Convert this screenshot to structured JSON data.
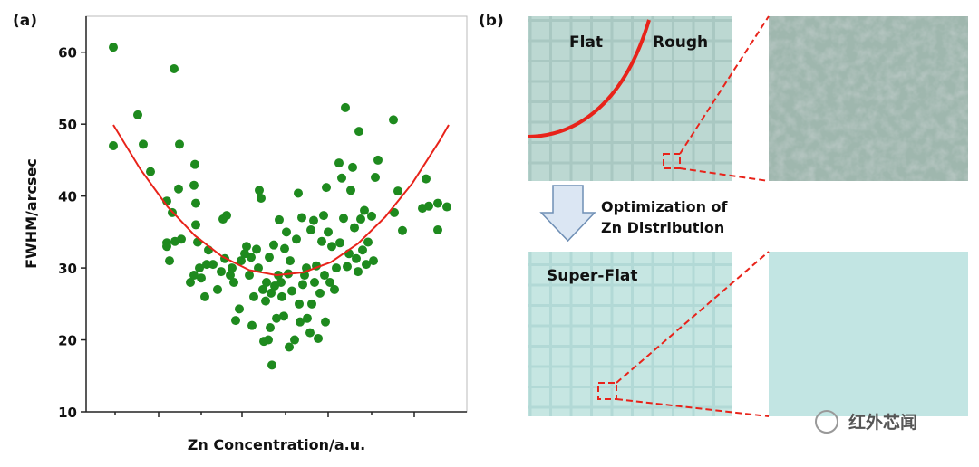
{
  "chart_data": {
    "type": "scatter",
    "x_label": "Zn Concentration/a.u.",
    "y_label": "FWHM/arcsec",
    "xlim": [
      0,
      42
    ],
    "ylim": [
      10,
      65
    ],
    "xticks": [
      3.2,
      8,
      12.7,
      17.2,
      22,
      26.7,
      31.5,
      36.2
    ],
    "yticks": [
      10,
      20,
      30,
      40,
      50,
      60
    ],
    "color": "#1e8a1e",
    "x": [
      3.0,
      3.0,
      5.7,
      6.3,
      7.1,
      9.7,
      10.3,
      8.9,
      9.5,
      8.9,
      8.9,
      9.2,
      9.8,
      10.5,
      10.2,
      11.9,
      12.0,
      12.1,
      12.1,
      12.3,
      11.5,
      11.9,
      12.5,
      12.7,
      13.1,
      13.3,
      13.5,
      14.0,
      14.5,
      14.9,
      15.1,
      15.5,
      15.3,
      15.9,
      16.1,
      16.3,
      16.5,
      16.9,
      17.1,
      17.5,
      17.7,
      18.0,
      18.2,
      18.3,
      18.5,
      18.8,
      19.0,
      19.1,
      19.3,
      19.5,
      19.6,
      19.8,
      19.9,
      20.1,
      20.2,
      20.3,
      20.4,
      20.5,
      20.7,
      20.8,
      21.0,
      21.2,
      21.3,
      21.5,
      21.6,
      21.8,
      21.9,
      22.1,
      22.3,
      22.4,
      22.5,
      22.7,
      23.0,
      23.2,
      23.4,
      23.5,
      23.6,
      23.8,
      23.9,
      24.1,
      24.3,
      24.4,
      24.7,
      24.8,
      24.9,
      25.1,
      25.2,
      25.4,
      25.6,
      25.8,
      26.0,
      26.2,
      26.3,
      26.4,
      26.5,
      26.7,
      26.9,
      27.1,
      27.4,
      27.6,
      27.9,
      28.0,
      28.2,
      28.4,
      28.6,
      28.8,
      29.0,
      29.2,
      29.4,
      29.6,
      29.8,
      30.0,
      30.1,
      30.3,
      30.5,
      30.7,
      30.9,
      31.1,
      31.5,
      31.7,
      31.9,
      32.2,
      33.9,
      34.0,
      34.4,
      34.9,
      37.5,
      37.1,
      37.8,
      38.8,
      38.8,
      39.8
    ],
    "values": [
      60.7,
      47,
      51.3,
      47.2,
      43.4,
      57.7,
      47.2,
      39.3,
      37.7,
      33.5,
      33,
      31,
      33.7,
      34,
      41,
      41.5,
      44.4,
      39,
      36,
      33.6,
      28,
      29,
      30,
      28.6,
      26,
      30.5,
      32.5,
      30.5,
      27,
      29.5,
      36.8,
      37.3,
      31.3,
      29,
      30,
      28,
      22.7,
      24.3,
      31,
      32,
      33,
      29,
      31.5,
      22,
      26,
      32.6,
      30,
      40.8,
      39.7,
      27,
      19.8,
      25.4,
      28,
      20,
      31.5,
      21.7,
      26.5,
      16.5,
      33.2,
      27.5,
      23,
      29,
      36.7,
      28,
      26,
      23.3,
      32.7,
      35,
      29.2,
      19,
      31,
      26.8,
      20,
      34,
      40.4,
      25,
      22.5,
      37,
      27.7,
      29,
      30,
      23,
      21,
      35.3,
      25,
      36.6,
      28,
      30.3,
      20.2,
      26.5,
      33.7,
      37.3,
      29,
      22.5,
      41.2,
      35,
      28,
      33,
      27,
      30,
      44.6,
      33.5,
      42.5,
      36.9,
      52.3,
      30.2,
      32,
      40.8,
      44,
      35.6,
      31.3,
      29.5,
      49,
      36.8,
      32.5,
      38,
      30.5,
      33.6,
      37.2,
      31,
      42.6,
      45,
      50.6,
      37.7,
      40.7,
      35.2,
      42.4,
      38.3,
      38.6,
      39,
      35.3,
      38.5
    ],
    "fit": {
      "color": "#e8231a",
      "x": [
        3,
        6,
        9,
        12,
        15,
        18,
        21,
        24,
        27,
        30,
        33,
        36,
        39,
        40
      ],
      "values": [
        49.9,
        43.7,
        38.5,
        34.5,
        31.6,
        29.7,
        29.0,
        29.4,
        30.8,
        33.4,
        37.1,
        41.8,
        47.7,
        49.9
      ]
    }
  },
  "panel_labels": [
    "(a)",
    "(b)"
  ],
  "image_labels": {
    "flat": "Flat",
    "rough": "Rough",
    "super_flat": "Super-Flat",
    "arrow_text": [
      "Optimization of",
      "Zn Distribution"
    ]
  },
  "watermark": "红外芯闻"
}
